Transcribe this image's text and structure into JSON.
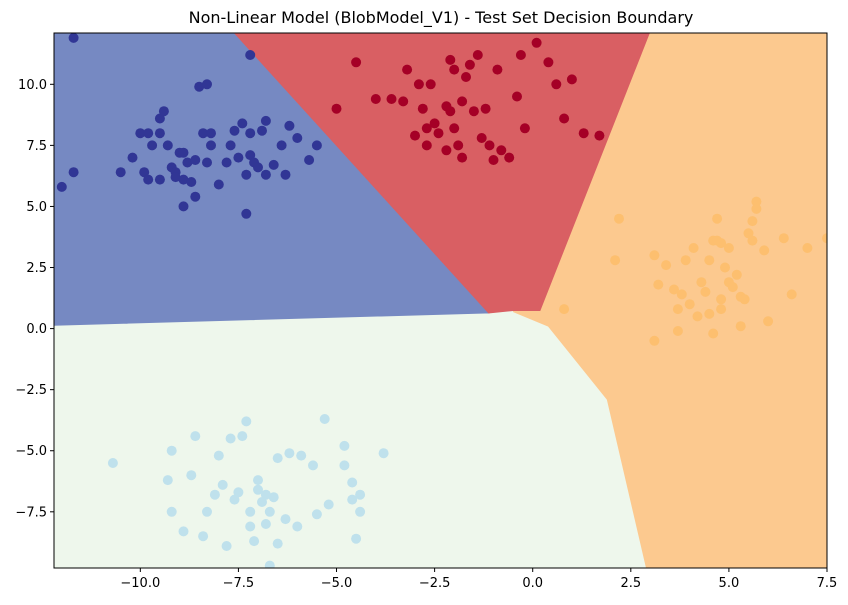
{
  "chart_data": {
    "type": "scatter",
    "title": "Non-Linear Model (BlobModel_V1) - Test Set Decision Boundary",
    "xlabel": "",
    "ylabel": "",
    "xlim": [
      -12.2,
      7.5
    ],
    "ylim": [
      -9.8,
      12.1
    ],
    "x_ticks": [
      -10.0,
      -7.5,
      -5.0,
      -2.5,
      0.0,
      2.5,
      5.0,
      7.5
    ],
    "x_tick_labels": [
      "−10.0",
      "−7.5",
      "−5.0",
      "−2.5",
      "0.0",
      "2.5",
      "5.0",
      "7.5"
    ],
    "y_ticks": [
      -7.5,
      -5.0,
      -2.5,
      0.0,
      2.5,
      5.0,
      7.5,
      10.0
    ],
    "y_tick_labels": [
      "−7.5",
      "−5.0",
      "−2.5",
      "0.0",
      "2.5",
      "5.0",
      "7.5",
      "10.0"
    ],
    "grid": false,
    "decision_regions": [
      {
        "class": 0,
        "color": "#7689c2",
        "polygon": [
          [
            -12.2,
            12.1
          ],
          [
            -7.6,
            12.1
          ],
          [
            -1.1,
            0.6
          ],
          [
            -12.2,
            0.1
          ]
        ]
      },
      {
        "class": 1,
        "color": "#d95f63",
        "polygon": [
          [
            -7.6,
            12.1
          ],
          [
            3.0,
            12.1
          ],
          [
            0.2,
            0.7
          ],
          [
            -1.1,
            0.6
          ]
        ]
      },
      {
        "class": 2,
        "color": "#eef7ec",
        "polygon": [
          [
            -12.2,
            0.1
          ],
          [
            -1.1,
            0.6
          ],
          [
            -0.5,
            0.7
          ],
          [
            0.4,
            0.1
          ],
          [
            1.9,
            -2.9
          ],
          [
            2.9,
            -9.8
          ],
          [
            -12.2,
            -9.8
          ]
        ]
      },
      {
        "class": 3,
        "color": "#fcc98f",
        "polygon": [
          [
            3.0,
            12.1
          ],
          [
            7.5,
            12.1
          ],
          [
            7.5,
            -9.8
          ],
          [
            2.9,
            -9.8
          ],
          [
            1.9,
            -2.9
          ],
          [
            0.4,
            0.1
          ],
          [
            -0.5,
            0.7
          ],
          [
            0.2,
            0.7
          ]
        ]
      }
    ],
    "series": [
      {
        "class": 0,
        "color": "#313695",
        "points": [
          [
            -12.0,
            5.8
          ],
          [
            -11.7,
            6.4
          ],
          [
            -11.7,
            11.9
          ],
          [
            -10.5,
            6.4
          ],
          [
            -10.2,
            7.0
          ],
          [
            -10.0,
            8.0
          ],
          [
            -9.8,
            8.0
          ],
          [
            -9.9,
            6.4
          ],
          [
            -9.8,
            6.1
          ],
          [
            -9.7,
            7.5
          ],
          [
            -9.5,
            8.0
          ],
          [
            -9.5,
            8.6
          ],
          [
            -9.5,
            6.1
          ],
          [
            -9.4,
            8.9
          ],
          [
            -9.3,
            7.5
          ],
          [
            -9.2,
            6.6
          ],
          [
            -9.1,
            6.4
          ],
          [
            -9.0,
            7.2
          ],
          [
            -9.1,
            6.2
          ],
          [
            -8.9,
            6.1
          ],
          [
            -8.9,
            7.2
          ],
          [
            -8.8,
            6.8
          ],
          [
            -8.9,
            5.0
          ],
          [
            -8.7,
            6.0
          ],
          [
            -8.6,
            5.4
          ],
          [
            -8.6,
            6.9
          ],
          [
            -8.5,
            9.9
          ],
          [
            -8.4,
            8.0
          ],
          [
            -8.2,
            8.0
          ],
          [
            -8.2,
            7.5
          ],
          [
            -8.3,
            6.8
          ],
          [
            -8.3,
            10.0
          ],
          [
            -8.0,
            5.9
          ],
          [
            -7.8,
            6.8
          ],
          [
            -7.7,
            7.5
          ],
          [
            -7.6,
            8.1
          ],
          [
            -7.5,
            7.0
          ],
          [
            -7.4,
            8.4
          ],
          [
            -7.3,
            4.7
          ],
          [
            -7.3,
            6.3
          ],
          [
            -7.2,
            7.1
          ],
          [
            -7.2,
            8.0
          ],
          [
            -7.1,
            6.8
          ],
          [
            -7.0,
            6.6
          ],
          [
            -6.9,
            8.1
          ],
          [
            -6.8,
            6.3
          ],
          [
            -6.8,
            8.5
          ],
          [
            -6.6,
            6.7
          ],
          [
            -6.4,
            7.5
          ],
          [
            -6.3,
            6.3
          ],
          [
            -6.2,
            8.3
          ],
          [
            -6.0,
            7.8
          ],
          [
            -5.7,
            6.9
          ],
          [
            -5.5,
            7.5
          ],
          [
            -7.2,
            11.2
          ]
        ]
      },
      {
        "class": 1,
        "color": "#a50026",
        "points": [
          [
            -5.0,
            9.0
          ],
          [
            -4.5,
            10.9
          ],
          [
            -4.0,
            9.4
          ],
          [
            -3.6,
            9.4
          ],
          [
            -3.3,
            9.3
          ],
          [
            -3.2,
            10.6
          ],
          [
            -3.0,
            7.9
          ],
          [
            -2.9,
            10.0
          ],
          [
            -2.8,
            9.0
          ],
          [
            -2.7,
            8.2
          ],
          [
            -2.6,
            10.0
          ],
          [
            -2.5,
            8.4
          ],
          [
            -2.4,
            8.0
          ],
          [
            -2.2,
            7.3
          ],
          [
            -2.2,
            9.1
          ],
          [
            -2.1,
            8.9
          ],
          [
            -2.1,
            11.0
          ],
          [
            -2.0,
            8.2
          ],
          [
            -2.0,
            10.6
          ],
          [
            -1.9,
            7.5
          ],
          [
            -1.8,
            7.0
          ],
          [
            -1.8,
            9.3
          ],
          [
            -1.7,
            10.3
          ],
          [
            -1.6,
            10.8
          ],
          [
            -1.5,
            8.9
          ],
          [
            -1.4,
            11.2
          ],
          [
            -1.3,
            7.8
          ],
          [
            -1.2,
            9.0
          ],
          [
            -1.1,
            7.5
          ],
          [
            -1.0,
            6.9
          ],
          [
            -0.9,
            10.6
          ],
          [
            -0.8,
            7.3
          ],
          [
            -0.6,
            7.0
          ],
          [
            -0.4,
            9.5
          ],
          [
            -0.3,
            11.2
          ],
          [
            -0.2,
            8.2
          ],
          [
            0.1,
            11.7
          ],
          [
            0.4,
            10.9
          ],
          [
            0.6,
            10.0
          ],
          [
            0.8,
            8.6
          ],
          [
            1.0,
            10.2
          ],
          [
            1.3,
            8.0
          ],
          [
            1.7,
            7.9
          ],
          [
            -2.7,
            7.5
          ]
        ]
      },
      {
        "class": 2,
        "color": "#bfe1ec",
        "points": [
          [
            -10.7,
            -5.5
          ],
          [
            -9.3,
            -6.2
          ],
          [
            -9.2,
            -5.0
          ],
          [
            -9.2,
            -7.5
          ],
          [
            -8.9,
            -8.3
          ],
          [
            -8.7,
            -6.0
          ],
          [
            -8.6,
            -4.4
          ],
          [
            -8.4,
            -8.5
          ],
          [
            -8.3,
            -7.5
          ],
          [
            -8.1,
            -6.8
          ],
          [
            -8.0,
            -5.2
          ],
          [
            -7.9,
            -6.4
          ],
          [
            -7.8,
            -8.9
          ],
          [
            -7.7,
            -4.5
          ],
          [
            -7.6,
            -7.0
          ],
          [
            -7.5,
            -6.7
          ],
          [
            -7.4,
            -4.4
          ],
          [
            -7.3,
            -3.8
          ],
          [
            -7.2,
            -8.1
          ],
          [
            -7.2,
            -7.5
          ],
          [
            -7.1,
            -8.7
          ],
          [
            -7.0,
            -6.2
          ],
          [
            -7.0,
            -6.6
          ],
          [
            -6.9,
            -7.1
          ],
          [
            -6.8,
            -6.8
          ],
          [
            -6.8,
            -8.0
          ],
          [
            -6.7,
            -9.7
          ],
          [
            -6.7,
            -7.5
          ],
          [
            -6.6,
            -6.9
          ],
          [
            -6.5,
            -8.8
          ],
          [
            -6.5,
            -5.3
          ],
          [
            -6.3,
            -7.8
          ],
          [
            -6.2,
            -5.1
          ],
          [
            -6.0,
            -8.1
          ],
          [
            -5.9,
            -5.2
          ],
          [
            -5.6,
            -5.6
          ],
          [
            -5.3,
            -3.7
          ],
          [
            -5.2,
            -7.2
          ],
          [
            -4.8,
            -4.8
          ],
          [
            -4.8,
            -5.6
          ],
          [
            -4.6,
            -7.0
          ],
          [
            -4.6,
            -6.3
          ],
          [
            -4.5,
            -8.6
          ],
          [
            -4.4,
            -6.8
          ],
          [
            -4.4,
            -7.5
          ],
          [
            -3.8,
            -5.1
          ],
          [
            -5.5,
            -7.6
          ]
        ]
      },
      {
        "class": 3,
        "color": "#fdbf6f",
        "points": [
          [
            0.8,
            0.8
          ],
          [
            2.2,
            4.5
          ],
          [
            2.1,
            2.8
          ],
          [
            3.1,
            3.0
          ],
          [
            3.1,
            -0.5
          ],
          [
            3.2,
            1.8
          ],
          [
            3.4,
            2.6
          ],
          [
            3.6,
            1.6
          ],
          [
            3.7,
            0.8
          ],
          [
            3.7,
            -0.1
          ],
          [
            3.8,
            1.4
          ],
          [
            3.9,
            2.8
          ],
          [
            4.0,
            1.0
          ],
          [
            4.1,
            3.3
          ],
          [
            4.2,
            0.5
          ],
          [
            4.3,
            1.9
          ],
          [
            4.4,
            1.5
          ],
          [
            4.5,
            2.8
          ],
          [
            4.5,
            0.6
          ],
          [
            4.6,
            3.6
          ],
          [
            4.6,
            -0.2
          ],
          [
            4.7,
            3.6
          ],
          [
            4.7,
            4.5
          ],
          [
            4.8,
            1.2
          ],
          [
            4.8,
            3.5
          ],
          [
            4.8,
            0.8
          ],
          [
            4.9,
            2.5
          ],
          [
            5.0,
            1.9
          ],
          [
            5.0,
            3.3
          ],
          [
            5.1,
            1.7
          ],
          [
            5.2,
            2.2
          ],
          [
            5.3,
            1.3
          ],
          [
            5.3,
            0.1
          ],
          [
            5.4,
            1.2
          ],
          [
            5.5,
            3.9
          ],
          [
            5.6,
            4.4
          ],
          [
            5.6,
            3.6
          ],
          [
            5.7,
            5.2
          ],
          [
            5.7,
            4.9
          ],
          [
            5.9,
            3.2
          ],
          [
            6.0,
            0.3
          ],
          [
            6.4,
            3.7
          ],
          [
            6.6,
            1.4
          ],
          [
            7.0,
            3.3
          ],
          [
            7.5,
            3.7
          ]
        ]
      }
    ]
  }
}
